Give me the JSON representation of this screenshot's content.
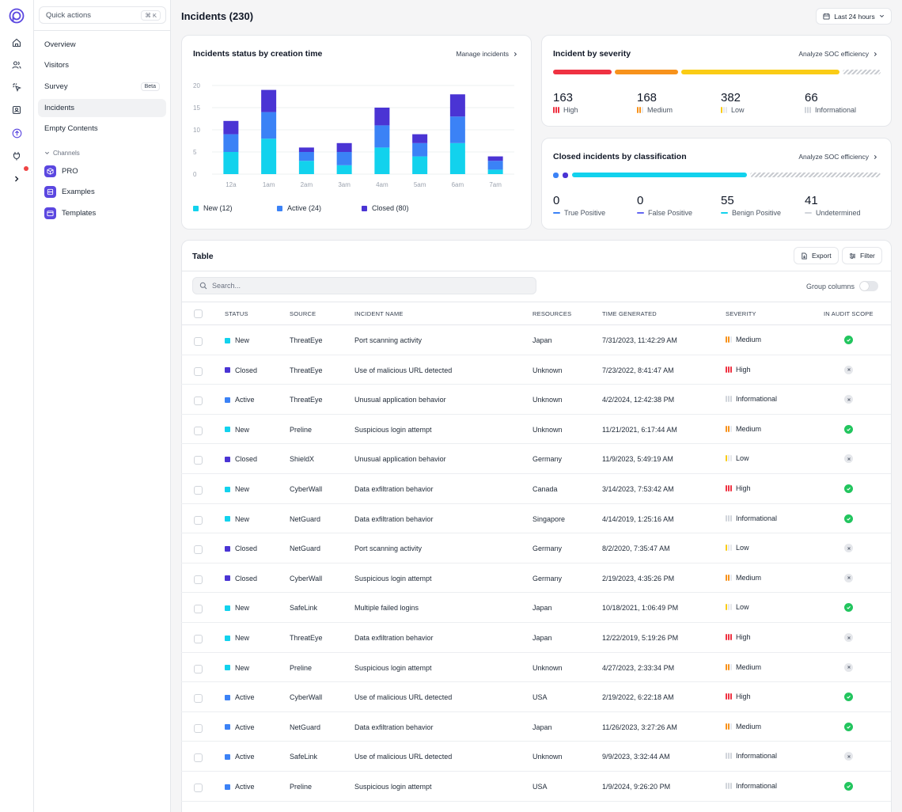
{
  "sidebar": {
    "quick_actions": "Quick actions",
    "quick_actions_kbd": "⌘ K",
    "nav": [
      {
        "label": "Overview",
        "active": false
      },
      {
        "label": "Visitors",
        "active": false
      },
      {
        "label": "Survey",
        "active": false,
        "badge": "Beta"
      },
      {
        "label": "Incidents",
        "active": true
      },
      {
        "label": "Empty Contents",
        "active": false
      }
    ],
    "channels_label": "Channels",
    "channels": [
      {
        "label": "PRO",
        "icon": "cube-icon"
      },
      {
        "label": "Examples",
        "icon": "database-icon"
      },
      {
        "label": "Templates",
        "icon": "window-icon"
      }
    ]
  },
  "header": {
    "title": "Incidents (230)",
    "range": "Last 24 hours"
  },
  "status_card": {
    "title": "Incidents status by creation time",
    "link": "Manage incidents",
    "legend": [
      "New (12)",
      "Active (24)",
      "Closed (80)"
    ]
  },
  "chart_data": {
    "type": "bar",
    "stacked": true,
    "categories": [
      "12a",
      "1am",
      "2am",
      "3am",
      "4am",
      "5am",
      "6am",
      "7am"
    ],
    "y_ticks": [
      "20",
      "15",
      "10",
      "5",
      "0"
    ],
    "ylim": [
      0,
      20
    ],
    "grid": true,
    "series": [
      {
        "name": "New (12)",
        "color": "#12d2ed",
        "values": [
          5,
          8,
          3,
          2,
          6,
          4,
          7,
          1
        ]
      },
      {
        "name": "Active (24)",
        "color": "#3b82f6",
        "values": [
          4,
          6,
          2,
          3,
          5,
          3,
          6,
          2
        ]
      },
      {
        "name": "Closed (80)",
        "color": "#4a34d4",
        "values": [
          3,
          5,
          1,
          2,
          4,
          2,
          5,
          1
        ]
      }
    ]
  },
  "severity_card": {
    "title": "Incident by severity",
    "link": "Analyze SOC efficiency",
    "stats": [
      {
        "value": "163",
        "label": "High",
        "color": "#ef3242"
      },
      {
        "value": "168",
        "label": "Medium",
        "color": "#f7921c"
      },
      {
        "value": "382",
        "label": "Low",
        "color": "#facc15"
      },
      {
        "value": "66",
        "label": "Informational",
        "color": "#d1d5db"
      }
    ]
  },
  "classification_card": {
    "title": "Closed incidents by classification",
    "link": "Analyze SOC efficiency",
    "stats": [
      {
        "value": "0",
        "label": "True Positive",
        "color": "#3b82f6"
      },
      {
        "value": "0",
        "label": "False Positive",
        "color": "#6366f1"
      },
      {
        "value": "55",
        "label": "Benign Positive",
        "color": "#12d2ed"
      },
      {
        "value": "41",
        "label": "Undetermined",
        "color": "#d1d5db"
      }
    ]
  },
  "table": {
    "title": "Table",
    "export": "Export",
    "filter": "Filter",
    "search_placeholder": "Search...",
    "group_columns": "Group columns",
    "columns": [
      "STATUS",
      "SOURCE",
      "INCIDENT NAME",
      "RESOURCES",
      "TIME GENERATED",
      "SEVERITY",
      "IN AUDIT SCOPE"
    ],
    "rows": [
      {
        "status": "New",
        "source": "ThreatEye",
        "name": "Port scanning activity",
        "resources": "Japan",
        "time": "7/31/2023, 11:42:29 AM",
        "severity": "Medium",
        "audit": true
      },
      {
        "status": "Closed",
        "source": "ThreatEye",
        "name": "Use of malicious URL detected",
        "resources": "Unknown",
        "time": "7/23/2022, 8:41:47 AM",
        "severity": "High",
        "audit": false
      },
      {
        "status": "Active",
        "source": "ThreatEye",
        "name": "Unusual application behavior",
        "resources": "Unknown",
        "time": "4/2/2024, 12:42:38 PM",
        "severity": "Informational",
        "audit": false
      },
      {
        "status": "New",
        "source": "Preline",
        "name": "Suspicious login attempt",
        "resources": "Unknown",
        "time": "11/21/2021, 6:17:44 AM",
        "severity": "Medium",
        "audit": true
      },
      {
        "status": "Closed",
        "source": "ShieldX",
        "name": "Unusual application behavior",
        "resources": "Germany",
        "time": "11/9/2023, 5:49:19 AM",
        "severity": "Low",
        "audit": false
      },
      {
        "status": "New",
        "source": "CyberWall",
        "name": "Data exfiltration behavior",
        "resources": "Canada",
        "time": "3/14/2023, 7:53:42 AM",
        "severity": "High",
        "audit": true
      },
      {
        "status": "New",
        "source": "NetGuard",
        "name": "Data exfiltration behavior",
        "resources": "Singapore",
        "time": "4/14/2019, 1:25:16 AM",
        "severity": "Informational",
        "audit": true
      },
      {
        "status": "Closed",
        "source": "NetGuard",
        "name": "Port scanning activity",
        "resources": "Germany",
        "time": "8/2/2020, 7:35:47 AM",
        "severity": "Low",
        "audit": false
      },
      {
        "status": "Closed",
        "source": "CyberWall",
        "name": "Suspicious login attempt",
        "resources": "Germany",
        "time": "2/19/2023, 4:35:26 PM",
        "severity": "Medium",
        "audit": false
      },
      {
        "status": "New",
        "source": "SafeLink",
        "name": "Multiple failed logins",
        "resources": "Japan",
        "time": "10/18/2021, 1:06:49 PM",
        "severity": "Low",
        "audit": true
      },
      {
        "status": "New",
        "source": "ThreatEye",
        "name": "Data exfiltration behavior",
        "resources": "Japan",
        "time": "12/22/2019, 5:19:26 PM",
        "severity": "High",
        "audit": false
      },
      {
        "status": "New",
        "source": "Preline",
        "name": "Suspicious login attempt",
        "resources": "Unknown",
        "time": "4/27/2023, 2:33:34 PM",
        "severity": "Medium",
        "audit": false
      },
      {
        "status": "Active",
        "source": "CyberWall",
        "name": "Use of malicious URL detected",
        "resources": "USA",
        "time": "2/19/2022, 6:22:18 AM",
        "severity": "High",
        "audit": true
      },
      {
        "status": "Active",
        "source": "NetGuard",
        "name": "Data exfiltration behavior",
        "resources": "Japan",
        "time": "11/26/2023, 3:27:26 AM",
        "severity": "Medium",
        "audit": true
      },
      {
        "status": "Active",
        "source": "SafeLink",
        "name": "Use of malicious URL detected",
        "resources": "Unknown",
        "time": "9/9/2023, 3:32:44 AM",
        "severity": "Informational",
        "audit": false
      },
      {
        "status": "Active",
        "source": "Preline",
        "name": "Suspicious login attempt",
        "resources": "USA",
        "time": "1/9/2024, 9:26:20 PM",
        "severity": "Informational",
        "audit": true
      }
    ]
  },
  "colors": {
    "new": "#12d2ed",
    "active": "#3b82f6",
    "closed": "#4a34d4",
    "high": "#ef3242",
    "medium": "#f7921c",
    "low": "#facc15",
    "informational": "#d1d5db",
    "audit_yes": "#22c55e",
    "audit_no": "#e5e7eb"
  }
}
